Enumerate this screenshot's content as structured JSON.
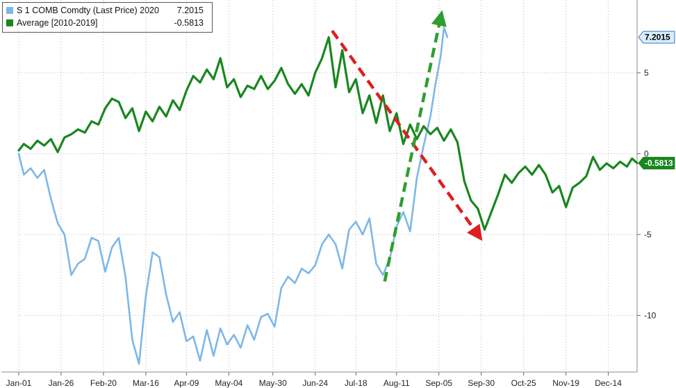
{
  "chart_data": {
    "type": "line",
    "x_ticks": [
      "Jan-01",
      "Jan-26",
      "Feb-20",
      "Mar-16",
      "Apr-09",
      "May-04",
      "May-30",
      "Jun-24",
      "Jul-18",
      "Aug-11",
      "Sep-05",
      "Sep-30",
      "Oct-25",
      "Nov-19",
      "Dec-14"
    ],
    "y_ticks": [
      5,
      0,
      -5,
      -10
    ],
    "ylim": [
      -13.5,
      9.5
    ],
    "grid": true,
    "legend_position": "top-left",
    "series": [
      {
        "name": "S 1 COMB Comdty (Last Price) 2020",
        "last_value": "7.2015",
        "color": "#7db7e8",
        "points": [
          [
            "Jan-01",
            0.0
          ],
          [
            "Jan-04",
            -1.3
          ],
          [
            "Jan-08",
            -0.9
          ],
          [
            "Jan-12",
            -1.5
          ],
          [
            "Jan-16",
            -1.0
          ],
          [
            "Jan-20",
            -2.8
          ],
          [
            "Jan-24",
            -4.3
          ],
          [
            "Jan-28",
            -5.0
          ],
          [
            "Feb-01",
            -7.5
          ],
          [
            "Feb-05",
            -6.8
          ],
          [
            "Feb-09",
            -6.5
          ],
          [
            "Feb-13",
            -5.2
          ],
          [
            "Feb-17",
            -5.4
          ],
          [
            "Feb-21",
            -7.3
          ],
          [
            "Feb-25",
            -5.8
          ],
          [
            "Feb-29",
            -5.2
          ],
          [
            "Mar-04",
            -7.6
          ],
          [
            "Mar-08",
            -11.5
          ],
          [
            "Mar-12",
            -13.0
          ],
          [
            "Mar-16",
            -8.8
          ],
          [
            "Mar-20",
            -6.1
          ],
          [
            "Mar-24",
            -6.4
          ],
          [
            "Mar-28",
            -8.7
          ],
          [
            "Apr-01",
            -10.4
          ],
          [
            "Apr-05",
            -9.8
          ],
          [
            "Apr-09",
            -11.6
          ],
          [
            "Apr-13",
            -11.3
          ],
          [
            "Apr-17",
            -12.8
          ],
          [
            "Apr-21",
            -10.9
          ],
          [
            "Apr-25",
            -12.5
          ],
          [
            "Apr-29",
            -10.8
          ],
          [
            "May-03",
            -11.8
          ],
          [
            "May-07",
            -11.2
          ],
          [
            "May-11",
            -12.0
          ],
          [
            "May-15",
            -10.6
          ],
          [
            "May-19",
            -11.5
          ],
          [
            "May-23",
            -10.1
          ],
          [
            "May-27",
            -9.9
          ],
          [
            "May-31",
            -10.7
          ],
          [
            "Jun-04",
            -8.3
          ],
          [
            "Jun-08",
            -7.6
          ],
          [
            "Jun-12",
            -8.0
          ],
          [
            "Jun-16",
            -7.1
          ],
          [
            "Jun-20",
            -7.4
          ],
          [
            "Jun-24",
            -6.9
          ],
          [
            "Jun-28",
            -5.6
          ],
          [
            "Jul-02",
            -5.0
          ],
          [
            "Jul-06",
            -5.6
          ],
          [
            "Jul-10",
            -7.1
          ],
          [
            "Jul-14",
            -4.7
          ],
          [
            "Jul-18",
            -4.2
          ],
          [
            "Jul-22",
            -5.0
          ],
          [
            "Jul-26",
            -4.0
          ],
          [
            "Jul-30",
            -6.8
          ],
          [
            "Aug-03",
            -7.5
          ],
          [
            "Aug-07",
            -6.5
          ],
          [
            "Aug-11",
            -4.5
          ],
          [
            "Aug-15",
            -3.6
          ],
          [
            "Aug-19",
            -4.8
          ],
          [
            "Aug-23",
            -1.5
          ],
          [
            "Aug-27",
            0.5
          ],
          [
            "Aug-31",
            2.3
          ],
          [
            "Sep-03",
            4.3
          ],
          [
            "Sep-06",
            6.0
          ],
          [
            "Sep-08",
            7.8
          ],
          [
            "Sep-10",
            7.2015
          ]
        ]
      },
      {
        "name": "Average [2010-2019]",
        "last_value": "-0.5813",
        "color": "#19861f",
        "points": [
          [
            "Jan-01",
            0.2
          ],
          [
            "Jan-04",
            0.6
          ],
          [
            "Jan-08",
            0.3
          ],
          [
            "Jan-12",
            0.8
          ],
          [
            "Jan-16",
            0.5
          ],
          [
            "Jan-20",
            0.9
          ],
          [
            "Jan-24",
            0.1
          ],
          [
            "Jan-28",
            1.0
          ],
          [
            "Feb-01",
            1.2
          ],
          [
            "Feb-05",
            1.5
          ],
          [
            "Feb-09",
            1.3
          ],
          [
            "Feb-13",
            2.0
          ],
          [
            "Feb-17",
            1.8
          ],
          [
            "Feb-21",
            2.8
          ],
          [
            "Feb-25",
            3.4
          ],
          [
            "Feb-29",
            3.2
          ],
          [
            "Mar-04",
            2.2
          ],
          [
            "Mar-08",
            2.8
          ],
          [
            "Mar-12",
            1.4
          ],
          [
            "Mar-16",
            2.6
          ],
          [
            "Mar-20",
            2.0
          ],
          [
            "Mar-24",
            2.9
          ],
          [
            "Mar-28",
            2.3
          ],
          [
            "Apr-01",
            3.3
          ],
          [
            "Apr-05",
            2.7
          ],
          [
            "Apr-09",
            3.9
          ],
          [
            "Apr-13",
            4.8
          ],
          [
            "Apr-17",
            4.4
          ],
          [
            "Apr-21",
            5.2
          ],
          [
            "Apr-25",
            4.6
          ],
          [
            "Apr-29",
            5.9
          ],
          [
            "May-03",
            4.1
          ],
          [
            "May-07",
            4.6
          ],
          [
            "May-11",
            3.5
          ],
          [
            "May-15",
            4.2
          ],
          [
            "May-19",
            4.0
          ],
          [
            "May-23",
            4.8
          ],
          [
            "May-27",
            4.0
          ],
          [
            "May-31",
            4.5
          ],
          [
            "Jun-04",
            5.3
          ],
          [
            "Jun-08",
            4.3
          ],
          [
            "Jun-12",
            3.7
          ],
          [
            "Jun-16",
            4.3
          ],
          [
            "Jun-20",
            3.6
          ],
          [
            "Jun-24",
            5.0
          ],
          [
            "Jun-28",
            5.9
          ],
          [
            "Jul-02",
            7.2
          ],
          [
            "Jul-06",
            4.1
          ],
          [
            "Jul-10",
            6.4
          ],
          [
            "Jul-14",
            3.8
          ],
          [
            "Jul-18",
            4.6
          ],
          [
            "Jul-22",
            2.5
          ],
          [
            "Jul-26",
            3.6
          ],
          [
            "Jul-30",
            1.9
          ],
          [
            "Aug-03",
            3.6
          ],
          [
            "Aug-07",
            1.4
          ],
          [
            "Aug-11",
            2.5
          ],
          [
            "Aug-15",
            0.6
          ],
          [
            "Aug-19",
            1.8
          ],
          [
            "Aug-23",
            0.9
          ],
          [
            "Aug-27",
            1.7
          ],
          [
            "Aug-31",
            1.2
          ],
          [
            "Sep-04",
            1.6
          ],
          [
            "Sep-08",
            0.8
          ],
          [
            "Sep-12",
            1.5
          ],
          [
            "Sep-16",
            0.7
          ],
          [
            "Sep-20",
            -1.7
          ],
          [
            "Sep-24",
            -2.9
          ],
          [
            "Sep-28",
            -3.4
          ],
          [
            "Oct-02",
            -4.7
          ],
          [
            "Oct-06",
            -3.6
          ],
          [
            "Oct-10",
            -2.5
          ],
          [
            "Oct-14",
            -1.3
          ],
          [
            "Oct-18",
            -1.8
          ],
          [
            "Oct-22",
            -1.2
          ],
          [
            "Oct-26",
            -0.8
          ],
          [
            "Oct-30",
            -1.3
          ],
          [
            "Nov-03",
            -0.7
          ],
          [
            "Nov-07",
            -1.3
          ],
          [
            "Nov-11",
            -2.4
          ],
          [
            "Nov-15",
            -2.0
          ],
          [
            "Nov-19",
            -3.3
          ],
          [
            "Nov-23",
            -2.1
          ],
          [
            "Nov-27",
            -1.8
          ],
          [
            "Dec-01",
            -1.4
          ],
          [
            "Dec-05",
            -0.2
          ],
          [
            "Dec-09",
            -1.0
          ],
          [
            "Dec-13",
            -0.6
          ],
          [
            "Dec-17",
            -0.9
          ],
          [
            "Dec-21",
            -0.5
          ],
          [
            "Dec-25",
            -0.8
          ],
          [
            "Dec-28",
            -0.3
          ],
          [
            "Dec-31",
            -0.5813
          ]
        ]
      }
    ],
    "annotations": [
      {
        "type": "dashed-arrow",
        "color": "#dd1f1f",
        "from": [
          "Jul-04",
          7.6
        ],
        "to": [
          "Sep-28",
          -5.0
        ]
      },
      {
        "type": "dashed-arrow",
        "color": "#2f9e2f",
        "from": [
          "Aug-04",
          -7.9
        ],
        "to": [
          "Sep-06",
          8.4
        ]
      }
    ]
  }
}
